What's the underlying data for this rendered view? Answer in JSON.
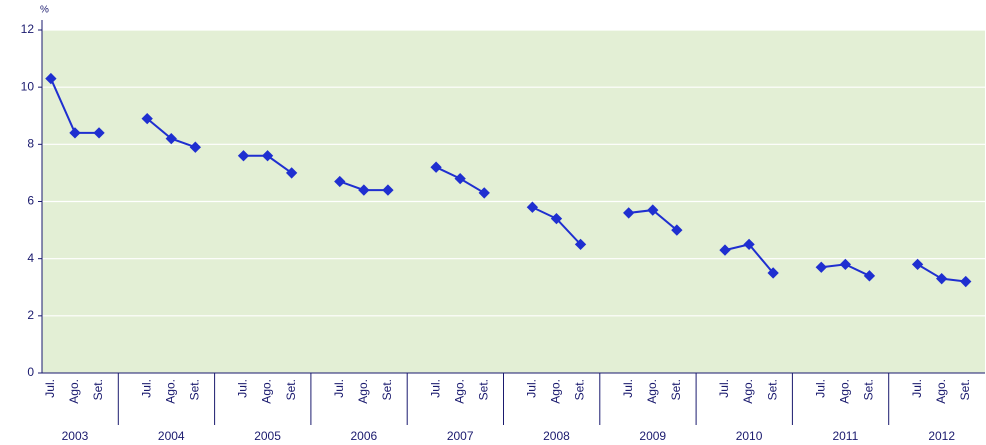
{
  "chart_data": {
    "type": "line",
    "unit": "%",
    "color": "#1f2fd0",
    "background": "#e3efd5",
    "grid": true,
    "ylim": [
      0,
      12
    ],
    "yticks": [
      0,
      2,
      4,
      6,
      8,
      10,
      12
    ],
    "groups": [
      {
        "label": "2003",
        "categories": [
          "Jul.",
          "Ago.",
          "Set."
        ],
        "values": [
          10.3,
          8.4,
          8.4
        ]
      },
      {
        "label": "2004",
        "categories": [
          "Jul.",
          "Ago.",
          "Set."
        ],
        "values": [
          8.9,
          8.2,
          7.9
        ]
      },
      {
        "label": "2005",
        "categories": [
          "Jul.",
          "Ago.",
          "Set."
        ],
        "values": [
          7.6,
          7.6,
          7.0
        ]
      },
      {
        "label": "2006",
        "categories": [
          "Jul.",
          "Ago.",
          "Set."
        ],
        "values": [
          6.7,
          6.4,
          6.4
        ]
      },
      {
        "label": "2007",
        "categories": [
          "Jul.",
          "Ago.",
          "Set."
        ],
        "values": [
          7.2,
          6.8,
          6.3
        ]
      },
      {
        "label": "2008",
        "categories": [
          "Jul.",
          "Ago.",
          "Set."
        ],
        "values": [
          5.8,
          5.4,
          4.5
        ]
      },
      {
        "label": "2009",
        "categories": [
          "Jul.",
          "Ago.",
          "Set."
        ],
        "values": [
          5.6,
          5.7,
          5.0
        ]
      },
      {
        "label": "2010",
        "categories": [
          "Jul.",
          "Ago.",
          "Set."
        ],
        "values": [
          4.3,
          4.5,
          3.5
        ]
      },
      {
        "label": "2011",
        "categories": [
          "Jul.",
          "Ago.",
          "Set."
        ],
        "values": [
          3.7,
          3.8,
          3.4
        ]
      },
      {
        "label": "2012",
        "categories": [
          "Jul.",
          "Ago.",
          "Set."
        ],
        "values": [
          3.8,
          3.3,
          3.2
        ]
      }
    ]
  }
}
